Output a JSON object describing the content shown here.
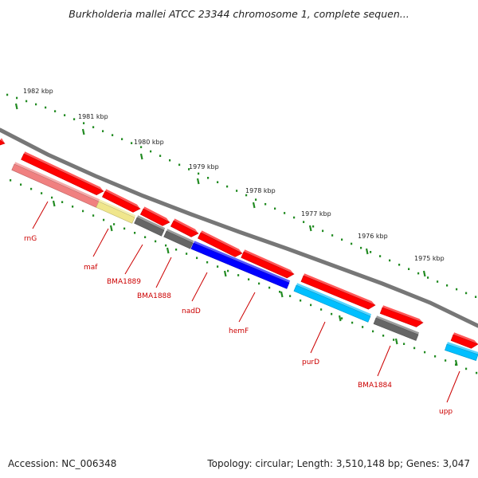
{
  "title": "Burkholderia mallei ATCC 23344 chromosome 1, complete sequen...",
  "footer": {
    "accession": "Accession: NC_006348",
    "stats": "Topology: circular; Length: 3,510,148 bp; Genes: 3,047"
  },
  "colors": {
    "backbone": "#777777",
    "forward_gene": "#ff0000",
    "reverse_gene_pink": "#f08080",
    "reverse_gene_yellow": "#f0e68c",
    "reverse_gene_gray": "#666666",
    "reverse_gene_blue": "#0000ff",
    "reverse_gene_cyan": "#00bfff",
    "tick": "#228b22",
    "gene_label": "#cc0000"
  },
  "ruler": [
    {
      "label": "1982 kbp"
    },
    {
      "label": "1981 kbp"
    },
    {
      "label": "1980 kbp"
    },
    {
      "label": "1979 kbp"
    },
    {
      "label": "1978 kbp"
    },
    {
      "label": "1977 kbp"
    },
    {
      "label": "1976 kbp"
    },
    {
      "label": "1975 kbp"
    }
  ],
  "genes": [
    {
      "name": "rnG",
      "color": "pink"
    },
    {
      "name": "maf",
      "color": "yellow"
    },
    {
      "name": "BMA1889",
      "color": "gray"
    },
    {
      "name": "BMA1888",
      "color": "gray"
    },
    {
      "name": "nadD",
      "color": "blue"
    },
    {
      "name": "hemF",
      "color": "blue"
    },
    {
      "name": "purD",
      "color": "cyan"
    },
    {
      "name": "BMA1884",
      "color": "gray"
    },
    {
      "name": "upp",
      "color": "cyan"
    }
  ]
}
